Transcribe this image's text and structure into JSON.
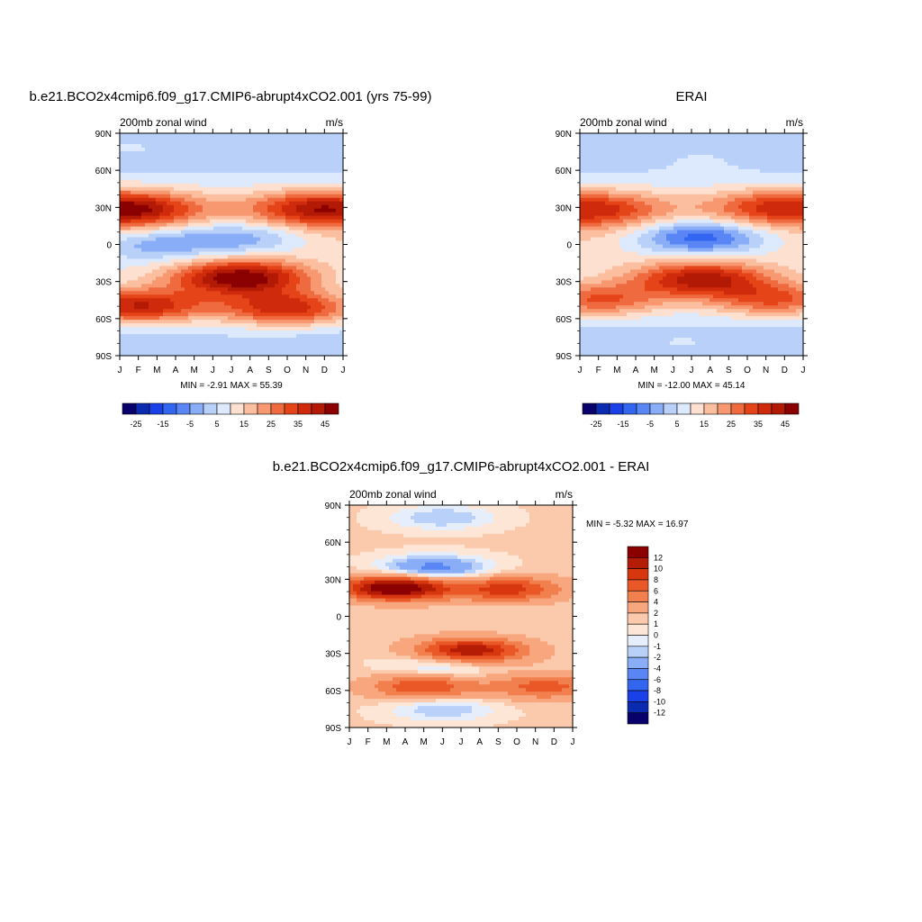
{
  "chart_data": [
    {
      "type": "heatmap",
      "title": "b.e21.BCO2x4cmip6.f09_g17.CMIP6-abrupt4xCO2.001 (yrs 75-99)",
      "subtitle_left": "200mb zonal wind",
      "subtitle_right": "m/s",
      "x_ticks": [
        "J",
        "F",
        "M",
        "A",
        "M",
        "J",
        "J",
        "A",
        "S",
        "O",
        "N",
        "D",
        "J"
      ],
      "y_ticks": [
        "90N",
        "60N",
        "30N",
        "0",
        "30S",
        "60S",
        "90S"
      ],
      "ylim": [
        -90,
        90
      ],
      "stats": "MIN =  -2.91 MAX =  55.39",
      "colorbar_labels": [
        "-25",
        "-15",
        "-5",
        "5",
        "15",
        "25",
        "35",
        "45"
      ],
      "features": [
        {
          "month": 1.3,
          "lat": 29,
          "value": 50
        },
        {
          "month": 12.0,
          "lat": 29,
          "value": 46
        },
        {
          "month": 7.5,
          "lat": -27,
          "value": 50
        },
        {
          "month": 2.0,
          "lat": -50,
          "value": 40
        },
        {
          "month": 10.0,
          "lat": -52,
          "value": 38
        },
        {
          "month": 7.5,
          "lat": 6,
          "value": -1
        },
        {
          "month": 2.8,
          "lat": 0,
          "value": 0
        },
        {
          "month": 1.5,
          "lat": 80,
          "value": 5
        },
        {
          "month": 7.5,
          "lat": 72,
          "value": 3
        },
        {
          "month": 7.0,
          "lat": -82,
          "value": 3
        }
      ]
    },
    {
      "type": "heatmap",
      "title": "ERAI",
      "subtitle_left": "200mb zonal wind",
      "subtitle_right": "m/s",
      "x_ticks": [
        "J",
        "F",
        "M",
        "A",
        "M",
        "J",
        "J",
        "A",
        "S",
        "O",
        "N",
        "D",
        "J"
      ],
      "y_ticks": [
        "90N",
        "60N",
        "30N",
        "0",
        "30S",
        "60S",
        "90S"
      ],
      "ylim": [
        -90,
        90
      ],
      "stats": "MIN = -12.00 MAX =  45.14",
      "colorbar_labels": [
        "-25",
        "-15",
        "-5",
        "5",
        "15",
        "25",
        "35",
        "45"
      ],
      "features": [
        {
          "month": 1.5,
          "lat": 29,
          "value": 40
        },
        {
          "month": 12.0,
          "lat": 30,
          "value": 40
        },
        {
          "month": 7.5,
          "lat": 6,
          "value": -12
        },
        {
          "month": 7.5,
          "lat": -28,
          "value": 42
        },
        {
          "month": 2.0,
          "lat": -45,
          "value": 30
        },
        {
          "month": 11.5,
          "lat": -45,
          "value": 30
        },
        {
          "month": 7.5,
          "lat": 72,
          "value": 5
        },
        {
          "month": 6.5,
          "lat": -82,
          "value": 5
        }
      ]
    },
    {
      "type": "heatmap",
      "title": "b.e21.BCO2x4cmip6.f09_g17.CMIP6-abrupt4xCO2.001 - ERAI",
      "subtitle_left": "200mb zonal wind",
      "subtitle_right": "m/s",
      "x_ticks": [
        "J",
        "F",
        "M",
        "A",
        "M",
        "J",
        "J",
        "A",
        "S",
        "O",
        "N",
        "D",
        "J"
      ],
      "y_ticks": [
        "90N",
        "60N",
        "30N",
        "0",
        "30S",
        "60S",
        "90S"
      ],
      "ylim": [
        -90,
        90
      ],
      "stats": "MIN =  -5.32 MAX =  16.97",
      "colorbar_labels": [
        "12",
        "10",
        "8",
        "6",
        "4",
        "2",
        "1",
        "0",
        "-1",
        "-2",
        "-4",
        "-6",
        "-8",
        "-10",
        "-12"
      ],
      "features": [
        {
          "month": 3.5,
          "lat": 23,
          "value": 15
        },
        {
          "month": 9.5,
          "lat": 22,
          "value": 9
        },
        {
          "month": 7.5,
          "lat": -28,
          "value": 12
        },
        {
          "month": 5.0,
          "lat": -57,
          "value": 8
        },
        {
          "month": 11.5,
          "lat": -57,
          "value": 7
        },
        {
          "month": 5.5,
          "lat": 39,
          "value": -5
        },
        {
          "month": 6.0,
          "lat": 80,
          "value": -2
        },
        {
          "month": 6.0,
          "lat": -75,
          "value": -2
        },
        {
          "month": 6.0,
          "lat": -40,
          "value": -2
        },
        {
          "month": 10.5,
          "lat": 0,
          "value": 1
        },
        {
          "month": 2.5,
          "lat": 0,
          "value": 1
        }
      ]
    }
  ]
}
